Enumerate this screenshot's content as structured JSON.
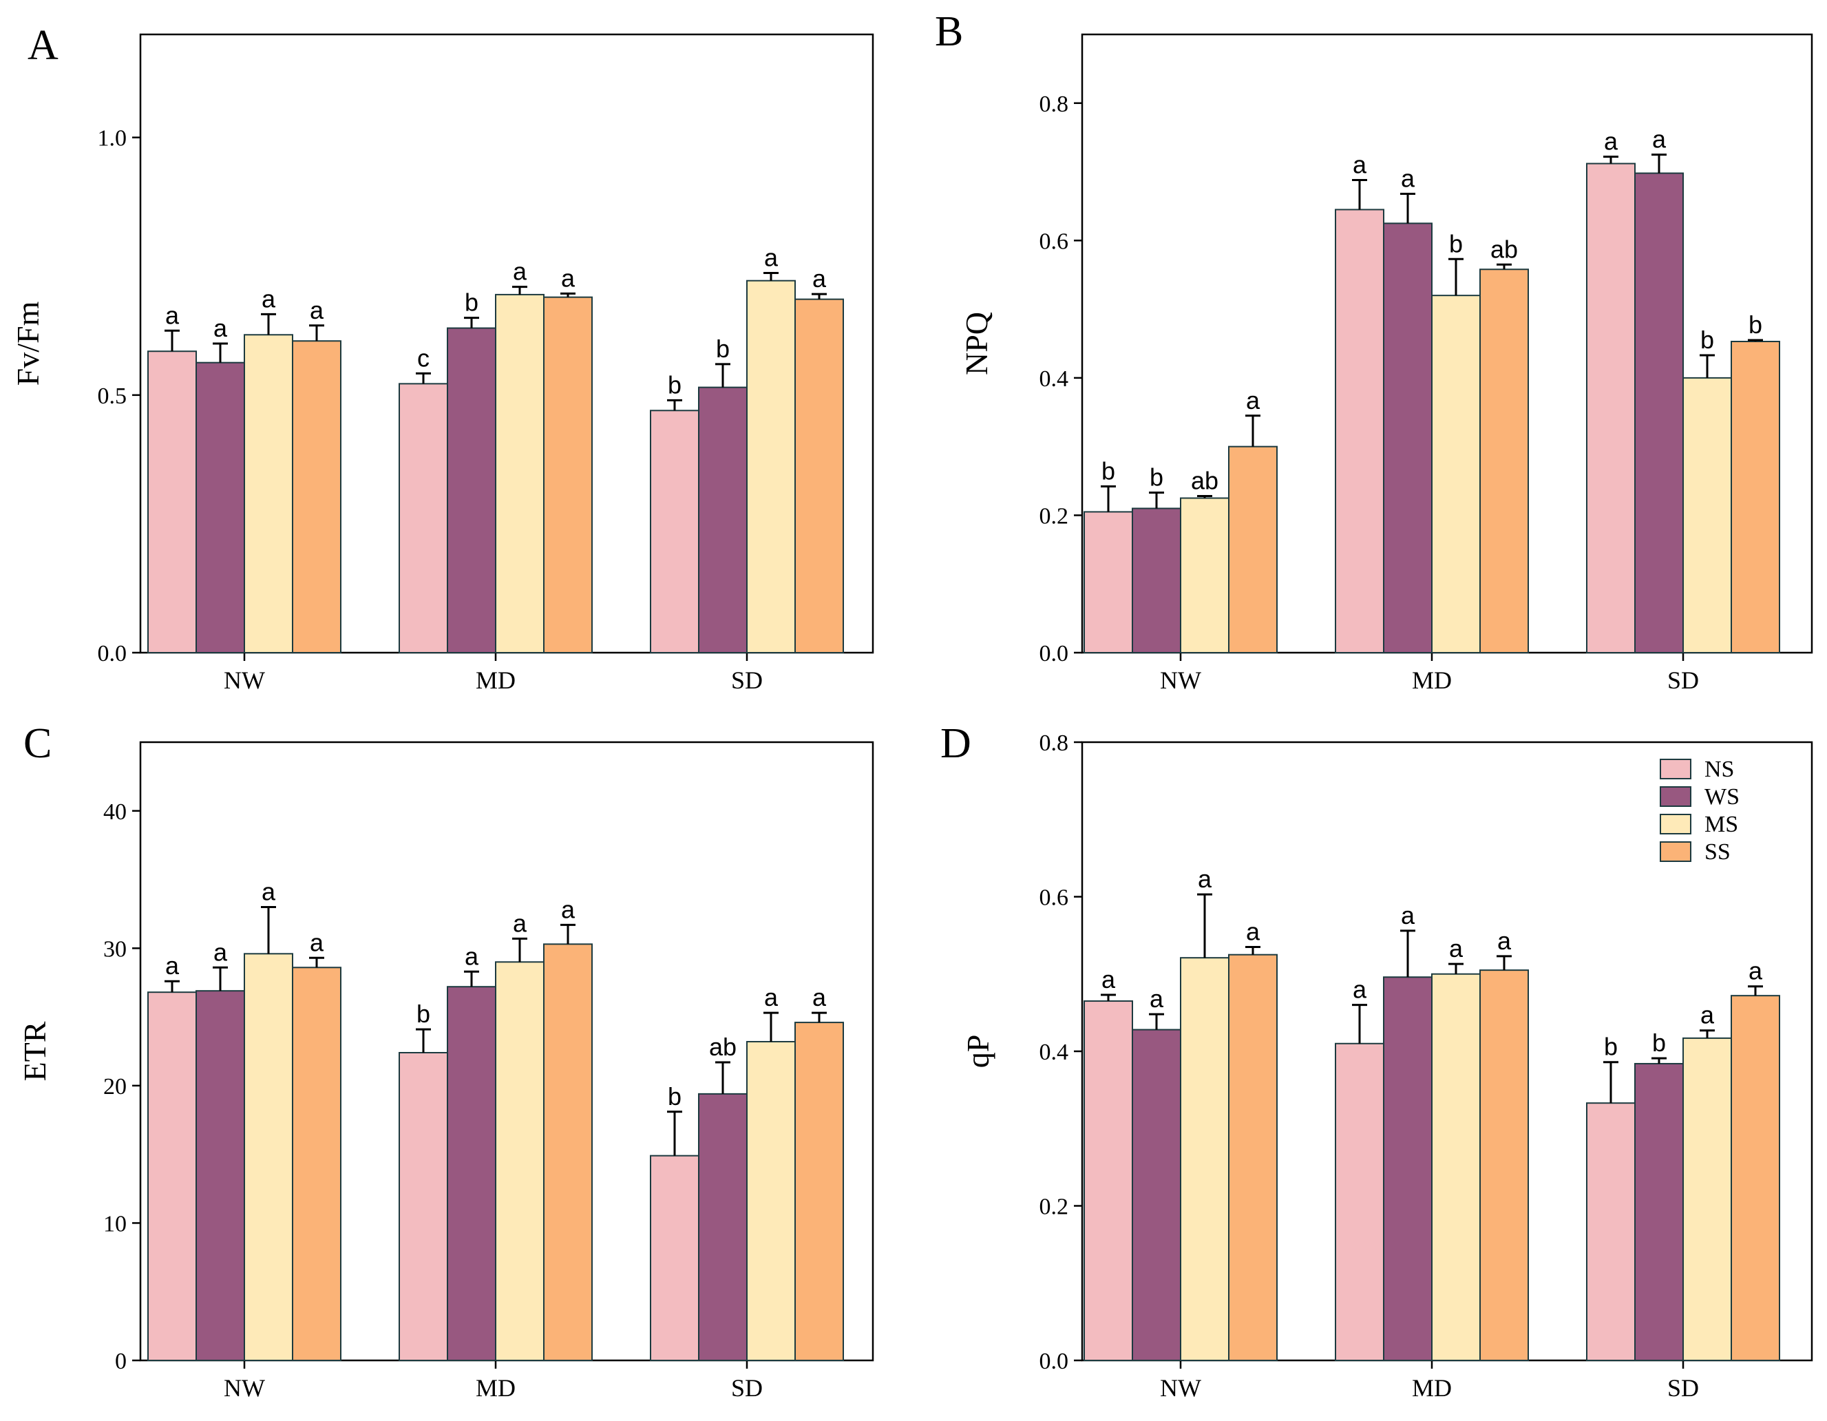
{
  "figure": {
    "series_names": [
      "NS",
      "WS",
      "MS",
      "SS"
    ],
    "series_colors": [
      "#f3bcc0",
      "#985880",
      "#feeab8",
      "#fbb377"
    ],
    "bar_edge_color": "#1c3a3f"
  },
  "chart_data": [
    {
      "panel": "A",
      "type": "bar",
      "ylabel": "Fv/Fm",
      "ylim": [
        0,
        1.2
      ],
      "yticks": [
        0.0,
        0.5,
        1.0
      ],
      "ytick_labels": [
        "0.0",
        "0.5",
        "1.0"
      ],
      "categories": [
        "NW",
        "MD",
        "SD"
      ],
      "series": [
        {
          "name": "NS",
          "values": [
            0.585,
            0.522,
            0.47
          ],
          "errors": [
            0.04,
            0.02,
            0.02
          ],
          "labels": [
            "a",
            "c",
            "b"
          ]
        },
        {
          "name": "WS",
          "values": [
            0.563,
            0.63,
            0.515
          ],
          "errors": [
            0.037,
            0.02,
            0.045
          ],
          "labels": [
            "a",
            "b",
            "b"
          ]
        },
        {
          "name": "MS",
          "values": [
            0.617,
            0.695,
            0.722
          ],
          "errors": [
            0.04,
            0.015,
            0.015
          ],
          "labels": [
            "a",
            "a",
            "a"
          ]
        },
        {
          "name": "SS",
          "values": [
            0.605,
            0.69,
            0.686
          ],
          "errors": [
            0.03,
            0.007,
            0.01
          ],
          "labels": [
            "a",
            "a",
            "a"
          ]
        }
      ]
    },
    {
      "panel": "B",
      "type": "bar",
      "ylabel": "NPQ",
      "ylim": [
        0,
        0.9
      ],
      "yticks": [
        0.0,
        0.2,
        0.4,
        0.6,
        0.8
      ],
      "ytick_labels": [
        "0.0",
        "0.2",
        "0.4",
        "0.6",
        "0.8"
      ],
      "categories": [
        "NW",
        "MD",
        "SD"
      ],
      "series": [
        {
          "name": "NS",
          "values": [
            0.205,
            0.645,
            0.712
          ],
          "errors": [
            0.037,
            0.043,
            0.01
          ],
          "labels": [
            "b",
            "a",
            "a"
          ]
        },
        {
          "name": "WS",
          "values": [
            0.21,
            0.625,
            0.698
          ],
          "errors": [
            0.023,
            0.043,
            0.027
          ],
          "labels": [
            "b",
            "a",
            "a"
          ]
        },
        {
          "name": "MS",
          "values": [
            0.225,
            0.52,
            0.4
          ],
          "errors": [
            0.003,
            0.053,
            0.033
          ],
          "labels": [
            "ab",
            "b",
            "b"
          ]
        },
        {
          "name": "SS",
          "values": [
            0.3,
            0.558,
            0.453
          ],
          "errors": [
            0.045,
            0.007,
            0.002
          ],
          "labels": [
            "a",
            "ab",
            "b"
          ]
        }
      ]
    },
    {
      "panel": "C",
      "type": "bar",
      "ylabel": "ETR",
      "ylim": [
        0,
        45
      ],
      "yticks": [
        0,
        10,
        20,
        30,
        40
      ],
      "ytick_labels": [
        "0",
        "10",
        "20",
        "30",
        "40"
      ],
      "categories": [
        "NW",
        "MD",
        "SD"
      ],
      "series": [
        {
          "name": "NS",
          "values": [
            26.8,
            22.4,
            14.9
          ],
          "errors": [
            0.8,
            1.7,
            3.2
          ],
          "labels": [
            "a",
            "b",
            "b"
          ]
        },
        {
          "name": "WS",
          "values": [
            26.9,
            27.2,
            19.4
          ],
          "errors": [
            1.7,
            1.1,
            2.3
          ],
          "labels": [
            "a",
            "a",
            "ab"
          ]
        },
        {
          "name": "MS",
          "values": [
            29.6,
            29.0,
            23.2
          ],
          "errors": [
            3.4,
            1.7,
            2.1
          ],
          "labels": [
            "a",
            "a",
            "a"
          ]
        },
        {
          "name": "SS",
          "values": [
            28.6,
            30.3,
            24.6
          ],
          "errors": [
            0.7,
            1.4,
            0.7
          ],
          "labels": [
            "a",
            "a",
            "a"
          ]
        }
      ]
    },
    {
      "panel": "D",
      "type": "bar",
      "ylabel": "qP",
      "ylim": [
        0,
        0.8
      ],
      "yticks": [
        0.0,
        0.2,
        0.4,
        0.6,
        0.8
      ],
      "ytick_labels": [
        "0.0",
        "0.2",
        "0.4",
        "0.6",
        "0.8"
      ],
      "categories": [
        "NW",
        "MD",
        "SD"
      ],
      "legend": "top-right",
      "series": [
        {
          "name": "NS",
          "values": [
            0.465,
            0.41,
            0.333
          ],
          "errors": [
            0.008,
            0.05,
            0.053
          ],
          "labels": [
            "a",
            "a",
            "b"
          ]
        },
        {
          "name": "WS",
          "values": [
            0.428,
            0.496,
            0.384
          ],
          "errors": [
            0.02,
            0.06,
            0.007
          ],
          "labels": [
            "a",
            "a",
            "b"
          ]
        },
        {
          "name": "MS",
          "values": [
            0.521,
            0.5,
            0.417
          ],
          "errors": [
            0.082,
            0.013,
            0.01
          ],
          "labels": [
            "a",
            "a",
            "a"
          ]
        },
        {
          "name": "SS",
          "values": [
            0.525,
            0.505,
            0.472
          ],
          "errors": [
            0.01,
            0.018,
            0.012
          ],
          "labels": [
            "a",
            "a",
            "a"
          ]
        }
      ]
    }
  ]
}
